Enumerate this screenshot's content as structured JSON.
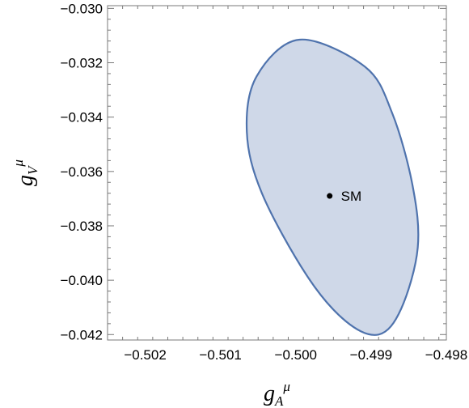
{
  "chart_data": {
    "type": "scatter",
    "title": "",
    "xlabel": {
      "base": "g",
      "sub": "A",
      "sup": "μ"
    },
    "ylabel": {
      "base": "g",
      "sub": "V",
      "sup": "μ"
    },
    "xlim": [
      -0.5025,
      -0.498
    ],
    "ylim": [
      -0.0422,
      -0.0299
    ],
    "x_ticks": [
      -0.502,
      -0.501,
      -0.5,
      -0.499,
      -0.498
    ],
    "x_tick_labels": [
      "−0.502",
      "−0.501",
      "−0.500",
      "−0.499",
      "−0.498"
    ],
    "y_ticks": [
      -0.042,
      -0.04,
      -0.038,
      -0.036,
      -0.034,
      -0.032,
      -0.03
    ],
    "y_tick_labels": [
      "−0.042",
      "−0.040",
      "−0.038",
      "−0.036",
      "−0.034",
      "−0.032",
      "−0.030"
    ],
    "region": {
      "shape": "ellipse",
      "center": [
        -0.49955,
        -0.03655
      ],
      "fill": "#cfd8e8",
      "stroke": "#4f73ad",
      "boundary": [
        [
          -0.49995,
          -0.03115
        ],
        [
          -0.49908,
          -0.03215
        ],
        [
          -0.49872,
          -0.03385
        ],
        [
          -0.49845,
          -0.0365
        ],
        [
          -0.49838,
          -0.0388
        ],
        [
          -0.4986,
          -0.04105
        ],
        [
          -0.4989,
          -0.042
        ],
        [
          -0.49934,
          -0.0415
        ],
        [
          -0.49986,
          -0.0398
        ],
        [
          -0.50045,
          -0.0368
        ],
        [
          -0.50065,
          -0.03455
        ],
        [
          -0.50052,
          -0.0325
        ]
      ]
    },
    "points": [
      {
        "label": "SM",
        "x": -0.49955,
        "y": -0.0369,
        "color": "#000000"
      }
    ],
    "grid": false
  }
}
